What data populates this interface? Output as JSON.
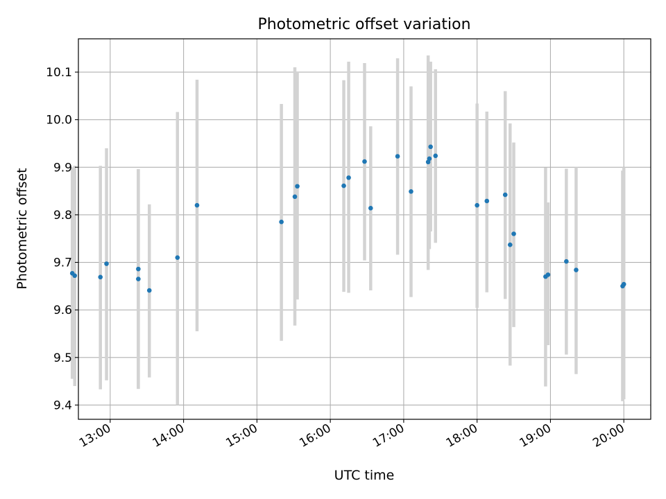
{
  "chart_data": {
    "type": "scatter",
    "title": "Photometric offset variation",
    "xlabel": "UTC time",
    "ylabel": "Photometric offset",
    "xlim": [
      "12:34",
      "20:22"
    ],
    "ylim": [
      9.37,
      10.17
    ],
    "xticks": [
      "13:00",
      "14:00",
      "15:00",
      "16:00",
      "17:00",
      "18:00",
      "19:00",
      "20:00"
    ],
    "yticks": [
      "9.4",
      "9.5",
      "9.6",
      "9.7",
      "9.8",
      "9.9",
      "10.0",
      "10.1"
    ],
    "grid": true,
    "colors": {
      "points": "#1f77b4",
      "error_bars": "#d3d3d3",
      "grid": "#b0b0b0",
      "axes": "#000000"
    },
    "series": [
      {
        "x": [
          "12:29",
          "12:31",
          "12:52",
          "12:57",
          "13:23",
          "13:23",
          "13:32",
          "13:55",
          "14:11",
          "15:20",
          "15:31",
          "15:33",
          "16:11",
          "16:15",
          "16:28",
          "16:33",
          "16:55",
          "17:06",
          "17:20",
          "17:21",
          "17:22",
          "17:26",
          "18:00",
          "18:08",
          "18:23",
          "18:27",
          "18:30",
          "18:56",
          "18:58",
          "19:13",
          "19:21",
          "19:59",
          "20:00"
        ],
        "y": [
          9.677,
          9.672,
          9.669,
          9.697,
          9.686,
          9.665,
          9.641,
          9.71,
          9.82,
          9.785,
          9.838,
          9.86,
          9.861,
          9.878,
          9.912,
          9.814,
          9.923,
          9.849,
          9.911,
          9.918,
          9.943,
          9.924,
          9.82,
          9.829,
          9.842,
          9.737,
          9.76,
          9.67,
          9.674,
          9.702,
          9.684,
          9.65,
          9.654
        ],
        "y_low": [
          9.455,
          9.44,
          9.433,
          9.452,
          9.434,
          9.434,
          9.458,
          9.4,
          9.555,
          9.535,
          9.567,
          9.622,
          9.638,
          9.636,
          9.704,
          9.641,
          9.716,
          9.627,
          9.684,
          9.728,
          9.765,
          9.741,
          9.604,
          9.637,
          9.623,
          9.483,
          9.564,
          9.439,
          9.526,
          9.506,
          9.465,
          9.408,
          9.412
        ],
        "y_high": [
          9.9,
          9.903,
          9.903,
          9.94,
          9.896,
          9.896,
          9.822,
          10.016,
          10.084,
          10.033,
          10.11,
          10.1,
          10.083,
          10.122,
          10.119,
          9.986,
          10.129,
          10.07,
          10.135,
          10.12,
          10.122,
          10.106,
          10.034,
          10.017,
          10.06,
          9.992,
          9.952,
          9.899,
          9.826,
          9.897,
          9.9,
          9.893,
          9.9
        ]
      }
    ]
  }
}
